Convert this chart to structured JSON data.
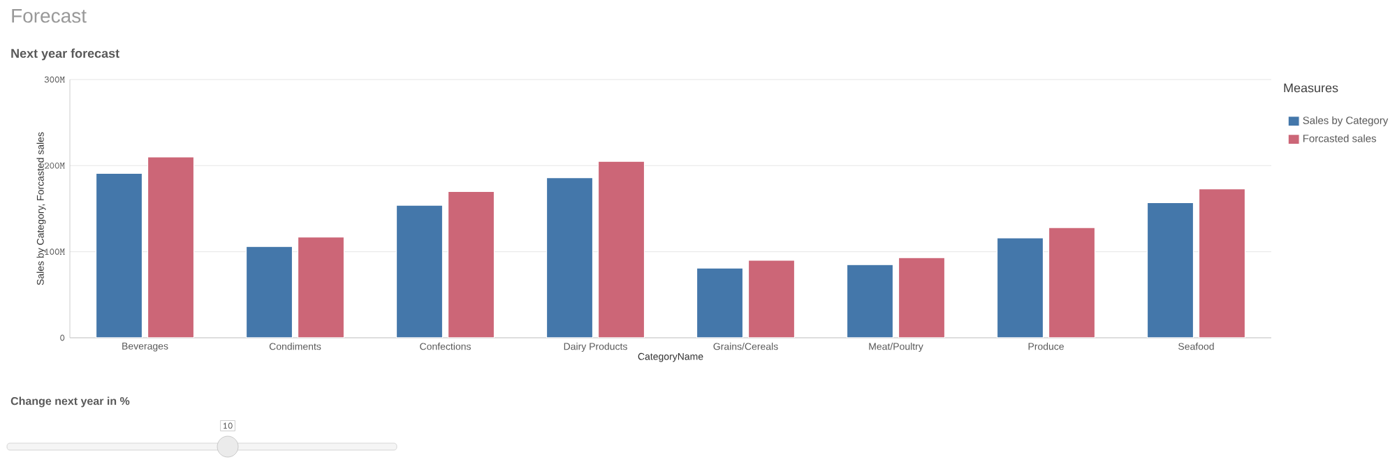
{
  "chart_data": {
    "type": "bar",
    "title": "Forecast",
    "subtitle": "Next year forecast",
    "xlabel": "CategoryName",
    "ylabel": "Sales by Category, Forcasted sales",
    "legend_title": "Measures",
    "categories": [
      "Beverages",
      "Condiments",
      "Confections",
      "Dairy Products",
      "Grains/Cereals",
      "Meat/Poultry",
      "Produce",
      "Seafood"
    ],
    "series": [
      {
        "name": "Sales by Category",
        "color": "#4477aa",
        "values": [
          191,
          106,
          154,
          186,
          81,
          85,
          116,
          157
        ]
      },
      {
        "name": "Forcasted sales",
        "color": "#cc6677",
        "values": [
          210,
          117,
          170,
          205,
          90,
          93,
          128,
          173
        ]
      }
    ],
    "ylim": [
      0,
      300
    ],
    "yticks": [
      {
        "value": 0,
        "label": "0"
      },
      {
        "value": 100,
        "label": "100M"
      },
      {
        "value": 200,
        "label": "200M"
      },
      {
        "value": 300,
        "label": "300M"
      }
    ],
    "grid": "y",
    "legend": "top right",
    "annotations": [
      "Change next year in %",
      "10"
    ]
  }
}
